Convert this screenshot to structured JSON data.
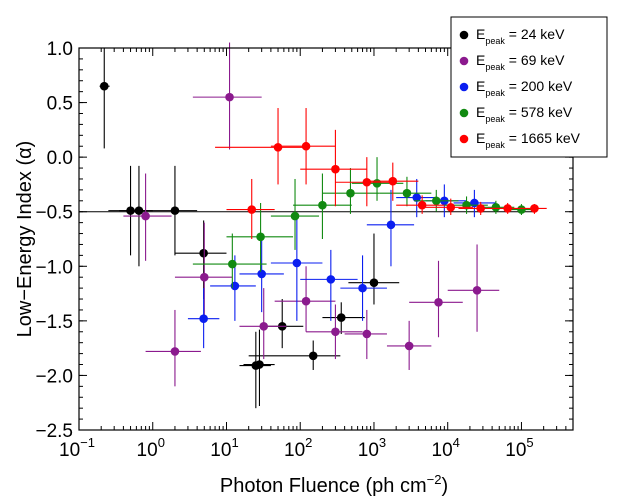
{
  "chart_data": {
    "type": "scatter",
    "title": "",
    "xlabel": "Photon Fluence (ph cm",
    "xlabel_exp": "−2",
    "xlabel_close": ")",
    "ylabel": "Low−Energy Index (α)",
    "xscale": "log",
    "xlim": [
      0.1,
      500000
    ],
    "ylim": [
      -2.5,
      1.0
    ],
    "x_ticks": [
      {
        "value": 0.1,
        "base": "10",
        "exp": "−1"
      },
      {
        "value": 1,
        "base": "10",
        "exp": "0"
      },
      {
        "value": 10,
        "base": "10",
        "exp": "1"
      },
      {
        "value": 100,
        "base": "10",
        "exp": "2"
      },
      {
        "value": 1000,
        "base": "10",
        "exp": "3"
      },
      {
        "value": 10000,
        "base": "10",
        "exp": "4"
      },
      {
        "value": 100000,
        "base": "10",
        "exp": "5"
      }
    ],
    "y_ticks": [
      {
        "value": 1.0,
        "label": "1.0"
      },
      {
        "value": 0.5,
        "label": "0.5"
      },
      {
        "value": 0.0,
        "label": "0.0"
      },
      {
        "value": -0.5,
        "label": "−0.5"
      },
      {
        "value": -1.0,
        "label": "−1.0"
      },
      {
        "value": -1.5,
        "label": "−1.5"
      },
      {
        "value": -2.0,
        "label": "−2.0"
      },
      {
        "value": -2.5,
        "label": "−2.5"
      }
    ],
    "reference_line": {
      "y": -0.5,
      "x_from": 0.1,
      "x_to": 150000
    },
    "legend_position": "top-right",
    "series": [
      {
        "name": "E_peak = 24 keV",
        "legend_main": "E",
        "legend_sub": "peak",
        "legend_rest": " = 24 keV",
        "color": "#000000",
        "points": [
          {
            "x": 0.22,
            "y": 0.65,
            "xlo": 0.19,
            "xhi": 0.26,
            "ylo": 0.08,
            "yhi": 1.0
          },
          {
            "x": 0.5,
            "y": -0.49,
            "xlo": 0.25,
            "xhi": 0.9,
            "ylo": -0.9,
            "yhi": -0.08
          },
          {
            "x": 0.65,
            "y": -0.49,
            "xlo": 0.35,
            "xhi": 1.0,
            "ylo": -1.0,
            "yhi": -0.08
          },
          {
            "x": 2.0,
            "y": -0.49,
            "xlo": 0.9,
            "xhi": 4.0,
            "ylo": -0.9,
            "yhi": -0.08
          },
          {
            "x": 4.9,
            "y": -0.88,
            "xlo": 2.0,
            "xhi": 10.0,
            "ylo": -1.3,
            "yhi": -0.58
          },
          {
            "x": 57,
            "y": -1.55,
            "xlo": 28,
            "xhi": 110,
            "ylo": -1.75,
            "yhi": -1.3
          },
          {
            "x": 150,
            "y": -1.82,
            "xlo": 20,
            "xhi": 350,
            "ylo": -1.95,
            "yhi": -1.68
          },
          {
            "x": 360,
            "y": -1.47,
            "xlo": 200,
            "xhi": 750,
            "ylo": -1.62,
            "yhi": -1.33
          },
          {
            "x": 1000,
            "y": -1.15,
            "xlo": 450,
            "xhi": 2200,
            "ylo": -1.35,
            "yhi": -0.7
          },
          {
            "x": 25,
            "y": -1.91,
            "xlo": 15,
            "xhi": 40,
            "ylo": -2.3,
            "yhi": -1.6
          },
          {
            "x": 28,
            "y": -1.9,
            "xlo": 17,
            "xhi": 45,
            "ylo": -2.28,
            "yhi": -1.58
          }
        ]
      },
      {
        "name": "E_peak = 69 keV",
        "legend_main": "E",
        "legend_sub": "peak",
        "legend_rest": " = 69 keV",
        "color": "#8b1a8e",
        "points": [
          {
            "x": 0.8,
            "y": -0.54,
            "xlo": 0.4,
            "xhi": 1.8,
            "ylo": -0.95,
            "yhi": -0.15
          },
          {
            "x": 11,
            "y": 0.55,
            "xlo": 3.5,
            "xhi": 30,
            "ylo": 0.07,
            "yhi": 1.05
          },
          {
            "x": 5.0,
            "y": -1.1,
            "xlo": 2.0,
            "xhi": 12,
            "ylo": -1.5,
            "yhi": -0.6
          },
          {
            "x": 2.0,
            "y": -1.78,
            "xlo": 0.8,
            "xhi": 4.5,
            "ylo": -2.1,
            "yhi": -1.4
          },
          {
            "x": 32,
            "y": -1.55,
            "xlo": 15,
            "xhi": 65,
            "ylo": -1.85,
            "yhi": -1.2
          },
          {
            "x": 120,
            "y": -1.32,
            "xlo": 45,
            "xhi": 300,
            "ylo": -1.6,
            "yhi": -1.0
          },
          {
            "x": 300,
            "y": -1.6,
            "xlo": 120,
            "xhi": 700,
            "ylo": -1.85,
            "yhi": -1.35
          },
          {
            "x": 800,
            "y": -1.62,
            "xlo": 400,
            "xhi": 1500,
            "ylo": -1.85,
            "yhi": -1.4
          },
          {
            "x": 3000,
            "y": -1.73,
            "xlo": 1500,
            "xhi": 6000,
            "ylo": -1.95,
            "yhi": -1.5
          },
          {
            "x": 7500,
            "y": -1.33,
            "xlo": 3000,
            "xhi": 16000,
            "ylo": -1.65,
            "yhi": -0.95
          },
          {
            "x": 25000,
            "y": -1.22,
            "xlo": 10000,
            "xhi": 50000,
            "ylo": -1.6,
            "yhi": -0.8
          }
        ]
      },
      {
        "name": "E_peak = 200 keV",
        "legend_main": "E",
        "legend_sub": "peak",
        "legend_rest": " = 200 keV",
        "color": "#0a1ef0",
        "points": [
          {
            "x": 4.9,
            "y": -1.48,
            "xlo": 3.0,
            "xhi": 8.0,
            "ylo": -1.75,
            "yhi": -1.2
          },
          {
            "x": 13,
            "y": -1.18,
            "xlo": 6.0,
            "xhi": 25,
            "ylo": -1.5,
            "yhi": -0.9
          },
          {
            "x": 30,
            "y": -1.07,
            "xlo": 15,
            "xhi": 60,
            "ylo": -1.42,
            "yhi": -0.7
          },
          {
            "x": 90,
            "y": -0.97,
            "xlo": 40,
            "xhi": 200,
            "ylo": -1.5,
            "yhi": -0.55
          },
          {
            "x": 260,
            "y": -1.12,
            "xlo": 100,
            "xhi": 600,
            "ylo": -1.5,
            "yhi": -0.85
          },
          {
            "x": 700,
            "y": -1.2,
            "xlo": 350,
            "xhi": 1500,
            "ylo": -1.5,
            "yhi": -0.9
          },
          {
            "x": 1700,
            "y": -0.62,
            "xlo": 800,
            "xhi": 3500,
            "ylo": -1.0,
            "yhi": -0.3
          },
          {
            "x": 3800,
            "y": -0.37,
            "xlo": 2000,
            "xhi": 7000,
            "ylo": -0.55,
            "yhi": -0.2
          },
          {
            "x": 9000,
            "y": -0.4,
            "xlo": 5000,
            "xhi": 18000,
            "ylo": -0.55,
            "yhi": -0.25
          },
          {
            "x": 23000,
            "y": -0.42,
            "xlo": 12000,
            "xhi": 45000,
            "ylo": -0.55,
            "yhi": -0.3
          }
        ]
      },
      {
        "name": "E_peak = 578 keV",
        "legend_main": "E",
        "legend_sub": "peak",
        "legend_rest": " = 578 keV",
        "color": "#118a11",
        "points": [
          {
            "x": 12,
            "y": -0.98,
            "xlo": 3.5,
            "xhi": 35,
            "ylo": -1.2,
            "yhi": -0.7
          },
          {
            "x": 29,
            "y": -0.73,
            "xlo": 10,
            "xhi": 80,
            "ylo": -1.05,
            "yhi": -0.42
          },
          {
            "x": 85,
            "y": -0.54,
            "xlo": 40,
            "xhi": 180,
            "ylo": -0.85,
            "yhi": -0.2
          },
          {
            "x": 200,
            "y": -0.44,
            "xlo": 80,
            "xhi": 500,
            "ylo": -0.75,
            "yhi": -0.15
          },
          {
            "x": 480,
            "y": -0.33,
            "xlo": 200,
            "xhi": 1200,
            "ylo": -0.52,
            "yhi": -0.1
          },
          {
            "x": 1100,
            "y": -0.24,
            "xlo": 500,
            "xhi": 2500,
            "ylo": -0.4,
            "yhi": 0.0
          },
          {
            "x": 2800,
            "y": -0.33,
            "xlo": 1200,
            "xhi": 6000,
            "ylo": -0.45,
            "yhi": -0.18
          },
          {
            "x": 7000,
            "y": -0.4,
            "xlo": 3500,
            "xhi": 14000,
            "ylo": -0.5,
            "yhi": -0.3
          },
          {
            "x": 18000,
            "y": -0.44,
            "xlo": 9000,
            "xhi": 35000,
            "ylo": -0.52,
            "yhi": -0.36
          },
          {
            "x": 45000,
            "y": -0.46,
            "xlo": 25000,
            "xhi": 80000,
            "ylo": -0.52,
            "yhi": -0.4
          },
          {
            "x": 100000,
            "y": -0.48,
            "xlo": 60000,
            "xhi": 150000,
            "ylo": -0.53,
            "yhi": -0.43
          }
        ]
      },
      {
        "name": "E_peak = 1665 keV",
        "legend_main": "E",
        "legend_sub": "peak",
        "legend_rest": " = 1665 keV",
        "color": "#ff0000",
        "points": [
          {
            "x": 22,
            "y": -0.48,
            "xlo": 10,
            "xhi": 45,
            "ylo": -0.75,
            "yhi": -0.2
          },
          {
            "x": 50,
            "y": 0.09,
            "xlo": 7.0,
            "xhi": 130,
            "ylo": -0.25,
            "yhi": 0.45
          },
          {
            "x": 120,
            "y": 0.1,
            "xlo": 40,
            "xhi": 300,
            "ylo": -0.25,
            "yhi": 0.45
          },
          {
            "x": 300,
            "y": -0.11,
            "xlo": 100,
            "xhi": 800,
            "ylo": -0.45,
            "yhi": 0.25
          },
          {
            "x": 800,
            "y": -0.23,
            "xlo": 300,
            "xhi": 2000,
            "ylo": -0.45,
            "yhi": 0.0
          },
          {
            "x": 1800,
            "y": -0.22,
            "xlo": 800,
            "xhi": 4000,
            "ylo": -0.4,
            "yhi": -0.05
          },
          {
            "x": 4500,
            "y": -0.44,
            "xlo": 2000,
            "xhi": 9000,
            "ylo": -0.52,
            "yhi": -0.35
          },
          {
            "x": 11000,
            "y": -0.46,
            "xlo": 5000,
            "xhi": 22000,
            "ylo": -0.53,
            "yhi": -0.38
          },
          {
            "x": 28000,
            "y": -0.47,
            "xlo": 14000,
            "xhi": 55000,
            "ylo": -0.53,
            "yhi": -0.41
          },
          {
            "x": 65000,
            "y": -0.47,
            "xlo": 35000,
            "xhi": 110000,
            "ylo": -0.52,
            "yhi": -0.42
          },
          {
            "x": 150000,
            "y": -0.47,
            "xlo": 90000,
            "xhi": 220000,
            "ylo": -0.52,
            "yhi": -0.43
          }
        ]
      }
    ]
  }
}
